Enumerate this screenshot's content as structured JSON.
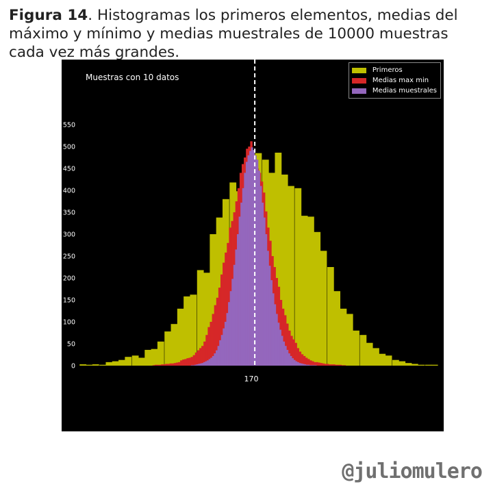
{
  "caption": {
    "label": "Figura 14",
    "text": ". Histogramas los primeros elementos, medias del máximo y mínimo y medias muestrales de 10000 muestras cada vez más grandes."
  },
  "handle": "@juliomulero",
  "chart_data": {
    "type": "bar",
    "annotation": "Muestras con 10 datos",
    "legend_placement": "top-right",
    "ylim": [
      0,
      700
    ],
    "xlim": [
      143,
      197
    ],
    "y_ticks": [
      0,
      50,
      100,
      150,
      200,
      250,
      300,
      350,
      400,
      450,
      500,
      550
    ],
    "x_ticks": [
      {
        "value": 170,
        "label": "170"
      }
    ],
    "reference_line": {
      "x": 170.3,
      "style": "dashed",
      "color": "#ffffff"
    },
    "grid": false,
    "series": [
      {
        "name": "Primeros",
        "color": "#bfbf00",
        "bin_width": 0.92,
        "x": [
          146.0,
          146.9,
          147.8,
          148.8,
          149.7,
          150.6,
          151.5,
          152.4,
          153.4,
          154.3,
          155.2,
          156.1,
          157.0,
          158.0,
          158.9,
          159.8,
          160.7,
          161.6,
          162.6,
          163.5,
          164.4,
          165.3,
          166.2,
          167.2,
          168.1,
          169.0,
          169.9,
          170.8,
          171.8,
          172.7,
          173.6,
          174.5,
          175.4,
          176.4,
          177.3,
          178.2,
          179.1,
          180.0,
          181.0,
          181.9,
          182.8,
          183.7,
          184.6,
          185.6,
          186.5,
          187.4,
          188.3,
          189.2,
          190.2,
          191.1,
          192.0,
          192.9,
          193.8,
          194.8,
          195.7
        ],
        "values": [
          3,
          2,
          3,
          2,
          8,
          10,
          13,
          20,
          23,
          18,
          36,
          38,
          55,
          78,
          95,
          130,
          158,
          162,
          218,
          212,
          300,
          338,
          380,
          418,
          398,
          448,
          470,
          485,
          470,
          440,
          486,
          436,
          410,
          405,
          342,
          340,
          305,
          262,
          225,
          170,
          130,
          118,
          80,
          70,
          52,
          40,
          27,
          23,
          13,
          10,
          6,
          4,
          2,
          2,
          2
        ]
      },
      {
        "name": "Medias max min",
        "color": "#d62728",
        "bin_width": 0.3,
        "x": [
          156.0,
          156.3,
          156.6,
          156.9,
          157.2,
          157.5,
          157.8,
          158.1,
          158.4,
          158.7,
          159.0,
          159.3,
          159.6,
          159.9,
          160.2,
          160.5,
          160.8,
          161.1,
          161.4,
          161.7,
          162.0,
          162.3,
          162.6,
          162.9,
          163.2,
          163.5,
          163.8,
          164.1,
          164.4,
          164.7,
          165.0,
          165.3,
          165.6,
          165.9,
          166.2,
          166.5,
          166.8,
          167.1,
          167.4,
          167.7,
          168.0,
          168.3,
          168.6,
          168.9,
          169.2,
          169.5,
          169.8,
          170.1,
          170.4,
          170.7,
          171.0,
          171.3,
          171.6,
          171.9,
          172.2,
          172.5,
          172.8,
          173.1,
          173.4,
          173.7,
          174.0,
          174.3,
          174.6,
          174.9,
          175.2,
          175.5,
          175.8,
          176.1,
          176.4,
          176.7,
          177.0,
          177.3,
          177.6,
          177.9,
          178.2,
          178.5,
          178.8,
          179.1,
          179.4,
          179.7,
          180.0,
          180.3,
          180.6,
          180.9,
          181.2,
          181.5,
          181.8,
          182.1,
          182.4,
          182.7,
          183.0
        ],
        "values": [
          1,
          2,
          2,
          2,
          3,
          3,
          4,
          4,
          5,
          5,
          6,
          7,
          8,
          12,
          14,
          15,
          17,
          18,
          20,
          24,
          30,
          35,
          40,
          45,
          55,
          70,
          88,
          100,
          118,
          138,
          155,
          178,
          208,
          235,
          258,
          280,
          315,
          330,
          350,
          375,
          405,
          440,
          460,
          475,
          495,
          500,
          512,
          480,
          470,
          450,
          440,
          420,
          395,
          352,
          315,
          285,
          250,
          225,
          200,
          180,
          150,
          130,
          115,
          96,
          80,
          68,
          60,
          52,
          40,
          32,
          26,
          22,
          18,
          15,
          12,
          10,
          8,
          8,
          7,
          6,
          5,
          4,
          4,
          3,
          3,
          3,
          2,
          2,
          2,
          1,
          1
        ]
      },
      {
        "name": "Medias muestrales",
        "color": "#9467bd",
        "bin_width": 0.25,
        "x": [
          161.4,
          161.65,
          161.9,
          162.15,
          162.4,
          162.65,
          162.9,
          163.15,
          163.4,
          163.65,
          163.9,
          164.15,
          164.4,
          164.65,
          164.9,
          165.15,
          165.4,
          165.65,
          165.9,
          166.15,
          166.4,
          166.65,
          166.9,
          167.15,
          167.4,
          167.65,
          167.9,
          168.15,
          168.4,
          168.65,
          168.9,
          169.15,
          169.4,
          169.65,
          169.9,
          170.15,
          170.4,
          170.65,
          170.9,
          171.15,
          171.4,
          171.65,
          171.9,
          172.15,
          172.4,
          172.65,
          172.9,
          173.15,
          173.4,
          173.65,
          173.9,
          174.15,
          174.4,
          174.65,
          174.9,
          175.15,
          175.4,
          175.65,
          175.9,
          176.15,
          176.4,
          176.65,
          176.9,
          177.15,
          177.4,
          177.65,
          177.9,
          178.15,
          178.4,
          178.65,
          178.9
        ],
        "values": [
          1,
          1,
          2,
          3,
          4,
          5,
          6,
          8,
          10,
          12,
          15,
          18,
          22,
          28,
          35,
          45,
          58,
          70,
          85,
          100,
          120,
          145,
          170,
          198,
          230,
          265,
          300,
          340,
          372,
          405,
          440,
          465,
          480,
          490,
          498,
          492,
          480,
          470,
          445,
          410,
          372,
          338,
          300,
          262,
          228,
          195,
          165,
          140,
          118,
          98,
          82,
          68,
          55,
          45,
          36,
          28,
          22,
          17,
          13,
          10,
          8,
          6,
          5,
          4,
          3,
          2,
          2,
          1,
          1,
          1,
          1
        ]
      }
    ]
  }
}
